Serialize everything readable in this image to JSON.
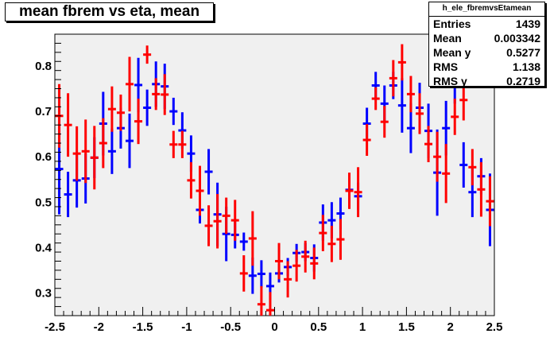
{
  "chart_data": {
    "type": "scatter",
    "title": "mean fbrem vs eta, mean",
    "xlabel": "",
    "ylabel": "",
    "xlim": [
      -2.5,
      2.5
    ],
    "ylim": [
      0.25,
      0.87
    ],
    "x_ticks": [
      -2.5,
      -2,
      -1.5,
      -1,
      -0.5,
      0,
      0.5,
      1,
      1.5,
      2,
      2.5
    ],
    "y_ticks": [
      0.3,
      0.4,
      0.5,
      0.6,
      0.7,
      0.8
    ],
    "grid": false,
    "colors": {
      "series_a": "#0000ff",
      "series_b": "#ff0000",
      "frame_bg": "#f0f0f0"
    },
    "series": [
      {
        "color": "#0000ff",
        "points": [
          {
            "x": -2.45,
            "y": 0.573,
            "err": 0.1
          },
          {
            "x": -2.35,
            "y": 0.517,
            "err": 0.05
          },
          {
            "x": -2.25,
            "y": 0.548,
            "err": 0.06
          },
          {
            "x": -2.15,
            "y": 0.552,
            "err": 0.055
          },
          {
            "x": -2.05,
            "y": 0.598,
            "err": 0.045
          },
          {
            "x": -1.95,
            "y": 0.673,
            "err": 0.07
          },
          {
            "x": -1.85,
            "y": 0.612,
            "err": 0.05
          },
          {
            "x": -1.75,
            "y": 0.663,
            "err": 0.045
          },
          {
            "x": -1.65,
            "y": 0.635,
            "err": 0.06
          },
          {
            "x": -1.55,
            "y": 0.758,
            "err": 0.06
          },
          {
            "x": -1.45,
            "y": 0.708,
            "err": 0.04
          },
          {
            "x": -1.35,
            "y": 0.76,
            "err": 0.05
          },
          {
            "x": -1.25,
            "y": 0.755,
            "err": 0.05
          },
          {
            "x": -1.15,
            "y": 0.7,
            "err": 0.03
          },
          {
            "x": -1.05,
            "y": 0.658,
            "err": 0.04
          },
          {
            "x": -0.95,
            "y": 0.607,
            "err": 0.04
          },
          {
            "x": -0.85,
            "y": 0.483,
            "err": 0.03
          },
          {
            "x": -0.75,
            "y": 0.567,
            "err": 0.05
          },
          {
            "x": -0.65,
            "y": 0.473,
            "err": 0.07
          },
          {
            "x": -0.55,
            "y": 0.43,
            "err": 0.06
          },
          {
            "x": -0.45,
            "y": 0.428,
            "err": 0.03
          },
          {
            "x": -0.35,
            "y": 0.413,
            "err": 0.02
          },
          {
            "x": -0.25,
            "y": 0.338,
            "err": 0.04
          },
          {
            "x": -0.15,
            "y": 0.342,
            "err": 0.03
          },
          {
            "x": -0.05,
            "y": 0.315,
            "err": 0.03
          },
          {
            "x": 0.05,
            "y": 0.343,
            "err": 0.02
          },
          {
            "x": 0.15,
            "y": 0.357,
            "err": 0.02
          },
          {
            "x": 0.25,
            "y": 0.388,
            "err": 0.02
          },
          {
            "x": 0.35,
            "y": 0.39,
            "err": 0.02
          },
          {
            "x": 0.45,
            "y": 0.377,
            "err": 0.03
          },
          {
            "x": 0.55,
            "y": 0.455,
            "err": 0.04
          },
          {
            "x": 0.65,
            "y": 0.46,
            "err": 0.04
          },
          {
            "x": 0.75,
            "y": 0.475,
            "err": 0.035
          },
          {
            "x": 0.85,
            "y": 0.527,
            "err": 0.01
          },
          {
            "x": 0.95,
            "y": 0.513,
            "err": 0.03
          },
          {
            "x": 1.05,
            "y": 0.673,
            "err": 0.035
          },
          {
            "x": 1.15,
            "y": 0.757,
            "err": 0.03
          },
          {
            "x": 1.25,
            "y": 0.717,
            "err": 0.04
          },
          {
            "x": 1.35,
            "y": 0.757,
            "err": 0.03
          },
          {
            "x": 1.45,
            "y": 0.713,
            "err": 0.06
          },
          {
            "x": 1.55,
            "y": 0.663,
            "err": 0.055
          },
          {
            "x": 1.65,
            "y": 0.708,
            "err": 0.055
          },
          {
            "x": 1.75,
            "y": 0.657,
            "err": 0.06
          },
          {
            "x": 1.85,
            "y": 0.565,
            "err": 0.095
          },
          {
            "x": 1.95,
            "y": 0.663,
            "err": 0.06
          },
          {
            "x": 2.05,
            "y": 0.757,
            "err": 0.04
          },
          {
            "x": 2.15,
            "y": 0.582,
            "err": 0.05
          },
          {
            "x": 2.25,
            "y": 0.522,
            "err": 0.055
          },
          {
            "x": 2.35,
            "y": 0.557,
            "err": 0.04
          },
          {
            "x": 2.45,
            "y": 0.483,
            "err": 0.08
          }
        ]
      },
      {
        "color": "#ff0000",
        "points": [
          {
            "x": -2.45,
            "y": 0.69,
            "err": 0.07
          },
          {
            "x": -2.35,
            "y": 0.67,
            "err": 0.07
          },
          {
            "x": -2.25,
            "y": 0.607,
            "err": 0.06
          },
          {
            "x": -2.15,
            "y": 0.612,
            "err": 0.07
          },
          {
            "x": -2.05,
            "y": 0.598,
            "err": 0.07
          },
          {
            "x": -1.95,
            "y": 0.63,
            "err": 0.055
          },
          {
            "x": -1.85,
            "y": 0.705,
            "err": 0.05
          },
          {
            "x": -1.75,
            "y": 0.697,
            "err": 0.04
          },
          {
            "x": -1.65,
            "y": 0.76,
            "err": 0.06
          },
          {
            "x": -1.55,
            "y": 0.678,
            "err": 0.05
          },
          {
            "x": -1.45,
            "y": 0.825,
            "err": 0.02
          },
          {
            "x": -1.35,
            "y": 0.738,
            "err": 0.035
          },
          {
            "x": -1.25,
            "y": 0.737,
            "err": 0.045
          },
          {
            "x": -1.15,
            "y": 0.627,
            "err": 0.03
          },
          {
            "x": -1.05,
            "y": 0.627,
            "err": 0.03
          },
          {
            "x": -0.95,
            "y": 0.548,
            "err": 0.04
          },
          {
            "x": -0.85,
            "y": 0.525,
            "err": 0.055
          },
          {
            "x": -0.75,
            "y": 0.448,
            "err": 0.045
          },
          {
            "x": -0.65,
            "y": 0.458,
            "err": 0.06
          },
          {
            "x": -0.55,
            "y": 0.47,
            "err": 0.04
          },
          {
            "x": -0.45,
            "y": 0.46,
            "err": 0.045
          },
          {
            "x": -0.35,
            "y": 0.343,
            "err": 0.04
          },
          {
            "x": -0.25,
            "y": 0.42,
            "err": 0.06
          },
          {
            "x": -0.15,
            "y": 0.275,
            "err": 0.04
          },
          {
            "x": -0.05,
            "y": 0.262,
            "err": 0.04
          },
          {
            "x": 0.05,
            "y": 0.37,
            "err": 0.04
          },
          {
            "x": 0.15,
            "y": 0.33,
            "err": 0.04
          },
          {
            "x": 0.25,
            "y": 0.36,
            "err": 0.035
          },
          {
            "x": 0.35,
            "y": 0.38,
            "err": 0.035
          },
          {
            "x": 0.45,
            "y": 0.365,
            "err": 0.035
          },
          {
            "x": 0.55,
            "y": 0.432,
            "err": 0.04
          },
          {
            "x": 0.65,
            "y": 0.408,
            "err": 0.04
          },
          {
            "x": 0.75,
            "y": 0.418,
            "err": 0.045
          },
          {
            "x": 0.85,
            "y": 0.525,
            "err": 0.04
          },
          {
            "x": 0.95,
            "y": 0.522,
            "err": 0.055
          },
          {
            "x": 1.05,
            "y": 0.637,
            "err": 0.035
          },
          {
            "x": 1.15,
            "y": 0.728,
            "err": 0.025
          },
          {
            "x": 1.25,
            "y": 0.677,
            "err": 0.035
          },
          {
            "x": 1.35,
            "y": 0.773,
            "err": 0.04
          },
          {
            "x": 1.45,
            "y": 0.808,
            "err": 0.04
          },
          {
            "x": 1.55,
            "y": 0.738,
            "err": 0.04
          },
          {
            "x": 1.65,
            "y": 0.695,
            "err": 0.045
          },
          {
            "x": 1.75,
            "y": 0.628,
            "err": 0.04
          },
          {
            "x": 1.85,
            "y": 0.6,
            "err": 0.055
          },
          {
            "x": 1.95,
            "y": 0.563,
            "err": 0.065
          },
          {
            "x": 2.05,
            "y": 0.688,
            "err": 0.04
          },
          {
            "x": 2.15,
            "y": 0.725,
            "err": 0.045
          },
          {
            "x": 2.25,
            "y": 0.577,
            "err": 0.04
          },
          {
            "x": 2.35,
            "y": 0.528,
            "err": 0.06
          },
          {
            "x": 2.45,
            "y": 0.502,
            "err": 0.055
          }
        ]
      }
    ]
  },
  "stats": {
    "name": "h_ele_fbremvsEtamean",
    "rows": [
      {
        "key": "Entries",
        "value": "1439"
      },
      {
        "key": "Mean",
        "value": "0.003342"
      },
      {
        "key": "Mean y",
        "value": "0.5277"
      },
      {
        "key": "RMS",
        "value": "1.138"
      },
      {
        "key": "RMS y",
        "value": "0.2719"
      }
    ]
  }
}
